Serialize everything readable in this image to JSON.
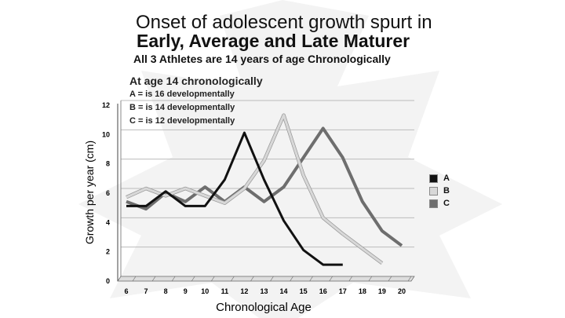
{
  "chart_data": {
    "type": "line",
    "title": "Onset of adolescent growth spurt in",
    "title_line2": "Early, Average and Late Maturer",
    "subtitle": "All 3 Athletes are 14 years of age Chronologically",
    "annotation": {
      "heading": "At age 14 chronologically",
      "lines": [
        "A = is 16 developmentally",
        "B = is 14 developmentally",
        "C = is 12 developmentally"
      ]
    },
    "xlabel": "Chronological Age",
    "ylabel": "Growth per year (cm)",
    "categories": [
      6,
      7,
      8,
      9,
      10,
      11,
      12,
      13,
      14,
      15,
      16,
      17,
      18,
      19,
      20
    ],
    "yticks": [
      0,
      2,
      4,
      6,
      8,
      10,
      12
    ],
    "ylim": [
      0,
      12
    ],
    "grid": true,
    "legend_position": "right",
    "series": [
      {
        "name": "A",
        "color": "#111111",
        "values": [
          4.8,
          4.8,
          5.8,
          4.8,
          4.8,
          6.6,
          9.8,
          6.6,
          3.8,
          1.8,
          0.8,
          0.8,
          null,
          null,
          null
        ]
      },
      {
        "name": "B",
        "color": "#d8d8d8",
        "values": [
          5.4,
          6,
          5.5,
          6,
          5.5,
          5,
          6,
          7.9,
          11,
          6.9,
          4,
          2.9,
          1.9,
          0.9,
          null
        ]
      },
      {
        "name": "C",
        "color": "#6e6e6e",
        "values": [
          5.1,
          4.6,
          5.7,
          5.1,
          6.1,
          5.1,
          6.1,
          5.1,
          6.1,
          8.1,
          10.1,
          8.1,
          5.1,
          3.1,
          2.1
        ]
      }
    ]
  }
}
